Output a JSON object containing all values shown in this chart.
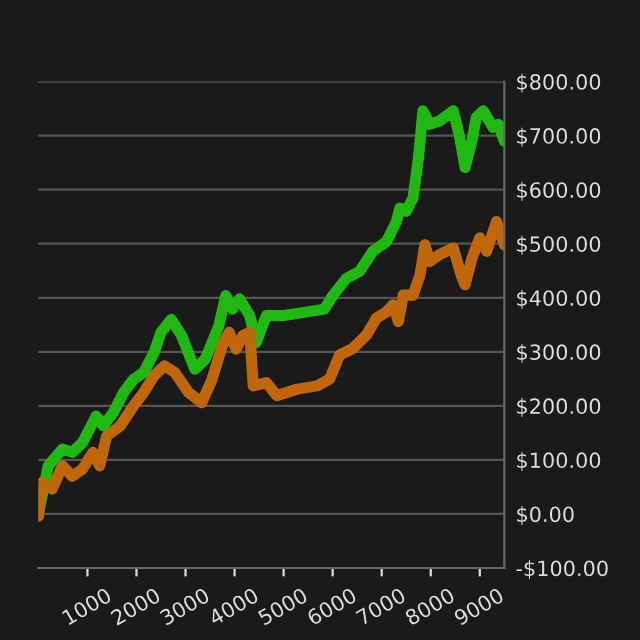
{
  "chart_data": {
    "type": "line",
    "xlim": [
      0,
      9500
    ],
    "xticks": [
      1000,
      2000,
      3000,
      4000,
      5000,
      6000,
      7000,
      8000,
      9000
    ],
    "ylim": [
      -100,
      800
    ],
    "yticks": [
      {
        "value": -100,
        "label": "-$100.00"
      },
      {
        "value": 0,
        "label": "$0.00"
      },
      {
        "value": 100,
        "label": "$100.00"
      },
      {
        "value": 200,
        "label": "$200.00"
      },
      {
        "value": 300,
        "label": "$300.00"
      },
      {
        "value": 400,
        "label": "$400.00"
      },
      {
        "value": 500,
        "label": "$500.00"
      },
      {
        "value": 600,
        "label": "$600.00"
      },
      {
        "value": 700,
        "label": "$700.00"
      },
      {
        "value": 800,
        "label": "$800.00"
      }
    ],
    "grid": "y",
    "legend": false,
    "marker": "none",
    "line_style": "solid",
    "series": [
      {
        "color": "#22b814",
        "x": [
          0,
          200,
          490,
          690,
          900,
          1180,
          1320,
          1530,
          1740,
          1940,
          2150,
          2360,
          2500,
          2710,
          2920,
          3190,
          3400,
          3680,
          3820,
          3960,
          4100,
          4310,
          4440,
          4650,
          5000,
          5420,
          5830,
          6010,
          6280,
          6550,
          6820,
          7100,
          7300,
          7370,
          7500,
          7640,
          7750,
          7840,
          7980,
          8180,
          8460,
          8590,
          8700,
          8840,
          8930,
          9070,
          9270,
          9380,
          9500
        ],
        "values": [
          0,
          89,
          120,
          114,
          132,
          181,
          163,
          188,
          225,
          249,
          262,
          299,
          336,
          360,
          330,
          268,
          286,
          348,
          404,
          379,
          398,
          367,
          317,
          367,
          367,
          373,
          379,
          405,
          436,
          449,
          486,
          504,
          541,
          566,
          560,
          585,
          659,
          746,
          721,
          727,
          746,
          697,
          641,
          690,
          734,
          746,
          715,
          721,
          690
        ]
      },
      {
        "color": "#c0670e",
        "x": [
          0,
          70,
          280,
          490,
          690,
          900,
          1110,
          1250,
          1390,
          1670,
          1940,
          2150,
          2360,
          2570,
          2780,
          3060,
          3330,
          3540,
          3750,
          3890,
          4030,
          4170,
          4310,
          4380,
          4650,
          4860,
          5280,
          5690,
          5940,
          6140,
          6410,
          6690,
          6890,
          7100,
          7230,
          7340,
          7440,
          7640,
          7780,
          7880,
          7980,
          8180,
          8460,
          8620,
          8700,
          8840,
          9000,
          9140,
          9340,
          9500
        ],
        "values": [
          -4,
          58,
          46,
          89,
          70,
          83,
          114,
          89,
          144,
          163,
          200,
          225,
          256,
          274,
          262,
          225,
          206,
          249,
          311,
          336,
          305,
          330,
          336,
          237,
          243,
          219,
          231,
          237,
          250,
          294,
          306,
          331,
          362,
          374,
          387,
          356,
          405,
          405,
          442,
          498,
          467,
          480,
          492,
          442,
          424,
          473,
          511,
          486,
          541,
          498
        ]
      }
    ]
  }
}
